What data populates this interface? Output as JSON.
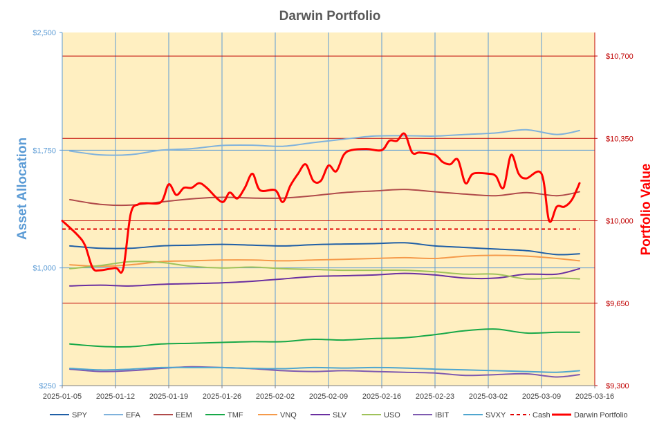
{
  "chart_data": {
    "type": "line",
    "title": "Darwin Portfolio",
    "ylabel": "Asset Allocation",
    "y2label": "Portfolio Value",
    "ylim": [
      250,
      2500
    ],
    "y2lim": [
      9300,
      10800
    ],
    "yticks": [
      "$250",
      "$1,000",
      "$1,750",
      "$2,500"
    ],
    "y2ticks": [
      "$9,300",
      "$9,650",
      "$10,000",
      "$10,350",
      "$10,700"
    ],
    "xlim": [
      "2025-01-05",
      "2025-03-16"
    ],
    "xticks": [
      "2025-01-05",
      "2025-01-12",
      "2025-01-19",
      "2025-01-26",
      "2025-02-02",
      "2025-02-09",
      "2025-02-16",
      "2025-02-23",
      "2025-03-02",
      "2025-03-09",
      "2025-03-16"
    ],
    "grid": true,
    "legend": "bottom",
    "series": [
      {
        "name": "SPY",
        "color": "#1f5fa6",
        "axis": "left",
        "style": "solid",
        "x": [
          "2025-01-06",
          "2025-01-10",
          "2025-01-14",
          "2025-01-18",
          "2025-01-22",
          "2025-01-26",
          "2025-01-30",
          "2025-02-03",
          "2025-02-07",
          "2025-02-11",
          "2025-02-15",
          "2025-02-19",
          "2025-02-23",
          "2025-02-27",
          "2025-03-03",
          "2025-03-07",
          "2025-03-11",
          "2025-03-14"
        ],
        "y": [
          1140,
          1125,
          1125,
          1140,
          1145,
          1150,
          1145,
          1140,
          1148,
          1152,
          1155,
          1160,
          1140,
          1130,
          1120,
          1110,
          1085,
          1090
        ]
      },
      {
        "name": "EFA",
        "color": "#7fb2dc",
        "axis": "left",
        "style": "solid",
        "x": [
          "2025-01-06",
          "2025-01-10",
          "2025-01-14",
          "2025-01-18",
          "2025-01-22",
          "2025-01-26",
          "2025-01-30",
          "2025-02-03",
          "2025-02-07",
          "2025-02-11",
          "2025-02-15",
          "2025-02-19",
          "2025-02-23",
          "2025-02-27",
          "2025-03-03",
          "2025-03-07",
          "2025-03-11",
          "2025-03-14"
        ],
        "y": [
          1745,
          1720,
          1722,
          1750,
          1760,
          1780,
          1782,
          1775,
          1798,
          1820,
          1840,
          1842,
          1840,
          1850,
          1860,
          1880,
          1850,
          1875
        ]
      },
      {
        "name": "EEM",
        "color": "#b04a4a",
        "axis": "left",
        "style": "solid",
        "x": [
          "2025-01-06",
          "2025-01-10",
          "2025-01-14",
          "2025-01-18",
          "2025-01-22",
          "2025-01-26",
          "2025-01-30",
          "2025-02-03",
          "2025-02-07",
          "2025-02-11",
          "2025-02-15",
          "2025-02-19",
          "2025-02-23",
          "2025-02-27",
          "2025-03-03",
          "2025-03-07",
          "2025-03-11",
          "2025-03-14"
        ],
        "y": [
          1435,
          1405,
          1400,
          1420,
          1440,
          1450,
          1445,
          1445,
          1460,
          1480,
          1490,
          1500,
          1485,
          1470,
          1460,
          1480,
          1460,
          1485
        ]
      },
      {
        "name": "TMF",
        "color": "#17a848",
        "axis": "left",
        "style": "solid",
        "x": [
          "2025-01-06",
          "2025-01-10",
          "2025-01-14",
          "2025-01-18",
          "2025-01-22",
          "2025-01-26",
          "2025-01-30",
          "2025-02-03",
          "2025-02-07",
          "2025-02-11",
          "2025-02-15",
          "2025-02-19",
          "2025-02-23",
          "2025-02-27",
          "2025-03-03",
          "2025-03-07",
          "2025-03-11",
          "2025-03-14"
        ],
        "y": [
          515,
          500,
          498,
          515,
          520,
          525,
          530,
          530,
          545,
          540,
          550,
          555,
          575,
          600,
          610,
          585,
          590,
          590
        ]
      },
      {
        "name": "VNQ",
        "color": "#f59a4a",
        "axis": "left",
        "style": "solid",
        "x": [
          "2025-01-06",
          "2025-01-10",
          "2025-01-14",
          "2025-01-18",
          "2025-01-22",
          "2025-01-26",
          "2025-01-30",
          "2025-02-03",
          "2025-02-07",
          "2025-02-11",
          "2025-02-15",
          "2025-02-19",
          "2025-02-23",
          "2025-02-27",
          "2025-03-03",
          "2025-03-07",
          "2025-03-11",
          "2025-03-14"
        ],
        "y": [
          1020,
          1010,
          1020,
          1040,
          1045,
          1050,
          1050,
          1045,
          1050,
          1055,
          1060,
          1065,
          1060,
          1075,
          1080,
          1075,
          1060,
          1045
        ]
      },
      {
        "name": "SLV",
        "color": "#6a2fa0",
        "axis": "left",
        "style": "solid",
        "x": [
          "2025-01-06",
          "2025-01-10",
          "2025-01-14",
          "2025-01-18",
          "2025-01-22",
          "2025-01-26",
          "2025-01-30",
          "2025-02-03",
          "2025-02-07",
          "2025-02-11",
          "2025-02-15",
          "2025-02-19",
          "2025-02-23",
          "2025-02-27",
          "2025-03-03",
          "2025-03-07",
          "2025-03-11",
          "2025-03-14"
        ],
        "y": [
          885,
          890,
          885,
          895,
          900,
          905,
          915,
          930,
          945,
          950,
          955,
          965,
          955,
          935,
          935,
          960,
          960,
          995
        ]
      },
      {
        "name": "USO",
        "color": "#9fc25a",
        "axis": "left",
        "style": "solid",
        "x": [
          "2025-01-06",
          "2025-01-10",
          "2025-01-14",
          "2025-01-18",
          "2025-01-22",
          "2025-01-26",
          "2025-01-30",
          "2025-02-03",
          "2025-02-07",
          "2025-02-11",
          "2025-02-15",
          "2025-02-19",
          "2025-02-23",
          "2025-02-27",
          "2025-03-03",
          "2025-03-07",
          "2025-03-11",
          "2025-03-14"
        ],
        "y": [
          995,
          1015,
          1040,
          1035,
          1010,
          1000,
          1005,
          995,
          990,
          985,
          985,
          985,
          975,
          960,
          960,
          930,
          935,
          930
        ]
      },
      {
        "name": "IBIT",
        "color": "#7e5ab0",
        "axis": "left",
        "style": "solid",
        "x": [
          "2025-01-06",
          "2025-01-10",
          "2025-01-14",
          "2025-01-18",
          "2025-01-22",
          "2025-01-26",
          "2025-01-30",
          "2025-02-03",
          "2025-02-07",
          "2025-02-11",
          "2025-02-15",
          "2025-02-19",
          "2025-02-23",
          "2025-02-27",
          "2025-03-03",
          "2025-03-07",
          "2025-03-11",
          "2025-03-14"
        ],
        "y": [
          355,
          340,
          345,
          360,
          370,
          365,
          358,
          345,
          340,
          345,
          340,
          335,
          330,
          315,
          320,
          325,
          305,
          320
        ]
      },
      {
        "name": "SVXY",
        "color": "#4fa6cf",
        "axis": "left",
        "style": "solid",
        "x": [
          "2025-01-06",
          "2025-01-10",
          "2025-01-14",
          "2025-01-18",
          "2025-01-22",
          "2025-01-26",
          "2025-01-30",
          "2025-02-03",
          "2025-02-07",
          "2025-02-11",
          "2025-02-15",
          "2025-02-19",
          "2025-02-23",
          "2025-02-27",
          "2025-03-03",
          "2025-03-07",
          "2025-03-11",
          "2025-03-14"
        ],
        "y": [
          360,
          350,
          355,
          365,
          365,
          365,
          360,
          358,
          365,
          362,
          365,
          362,
          355,
          350,
          345,
          340,
          335,
          345
        ]
      },
      {
        "name": "Cash",
        "color": "#e00000",
        "axis": "right",
        "style": "dashed",
        "x": [
          "2025-01-05",
          "2025-03-14"
        ],
        "y": [
          9965,
          9965
        ]
      },
      {
        "name": "Darwin Portfolio",
        "color": "#ff0000",
        "axis": "right",
        "style": "bold",
        "x": [
          "2025-01-05",
          "2025-01-07",
          "2025-01-08",
          "2025-01-09",
          "2025-01-10",
          "2025-01-12",
          "2025-01-13",
          "2025-01-14",
          "2025-01-15",
          "2025-01-16",
          "2025-01-18",
          "2025-01-19",
          "2025-01-20",
          "2025-01-21",
          "2025-01-22",
          "2025-01-23",
          "2025-01-24",
          "2025-01-26",
          "2025-01-27",
          "2025-01-28",
          "2025-01-29",
          "2025-01-30",
          "2025-01-31",
          "2025-02-02",
          "2025-02-03",
          "2025-02-04",
          "2025-02-05",
          "2025-02-06",
          "2025-02-07",
          "2025-02-08",
          "2025-02-09",
          "2025-02-10",
          "2025-02-11",
          "2025-02-12",
          "2025-02-14",
          "2025-02-16",
          "2025-02-17",
          "2025-02-18",
          "2025-02-19",
          "2025-02-20",
          "2025-02-21",
          "2025-02-23",
          "2025-02-24",
          "2025-02-25",
          "2025-02-26",
          "2025-02-27",
          "2025-02-28",
          "2025-03-02",
          "2025-03-03",
          "2025-03-04",
          "2025-03-05",
          "2025-03-06",
          "2025-03-07",
          "2025-03-09",
          "2025-03-10",
          "2025-03-11",
          "2025-03-12",
          "2025-03-13",
          "2025-03-14"
        ],
        "y": [
          10000,
          9940,
          9895,
          9800,
          9790,
          9800,
          9795,
          10030,
          10070,
          10075,
          10080,
          10155,
          10110,
          10140,
          10140,
          10160,
          10140,
          10080,
          10120,
          10095,
          10140,
          10200,
          10130,
          10130,
          10080,
          10150,
          10200,
          10240,
          10170,
          10170,
          10235,
          10210,
          10280,
          10300,
          10305,
          10300,
          10340,
          10340,
          10370,
          10290,
          10290,
          10280,
          10250,
          10240,
          10260,
          10160,
          10200,
          10200,
          10190,
          10140,
          10280,
          10200,
          10180,
          10200,
          10000,
          10060,
          10060,
          10090,
          10160
        ]
      }
    ]
  }
}
